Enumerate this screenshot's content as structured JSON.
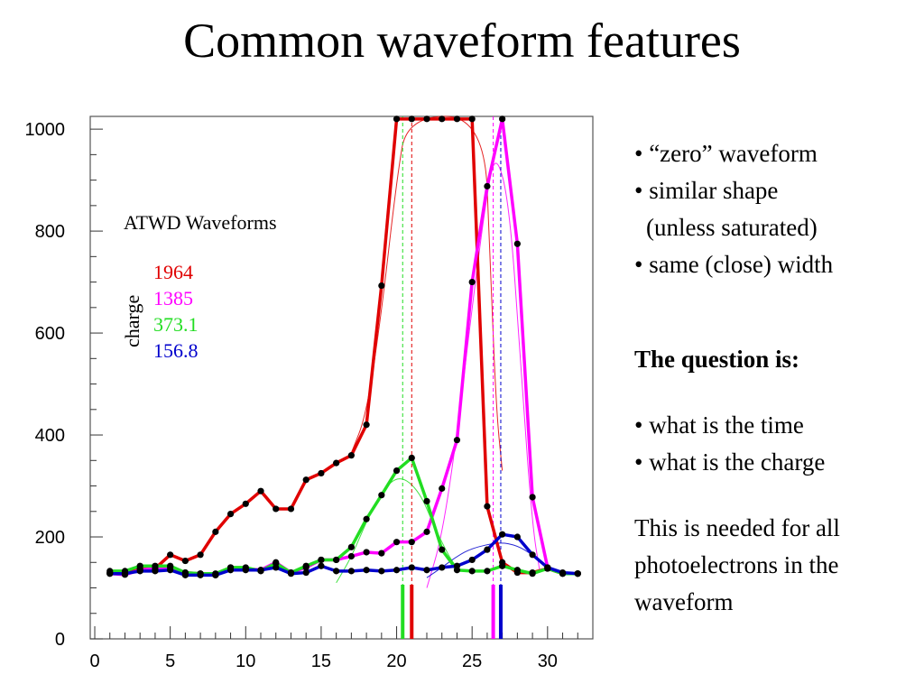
{
  "title": "Common waveform features",
  "chart_data": {
    "type": "line",
    "x_ticks": [
      0,
      5,
      10,
      15,
      20,
      25,
      30
    ],
    "y_ticks": [
      0,
      200,
      400,
      600,
      800,
      1000
    ],
    "xlim": [
      -0.3,
      33
    ],
    "ylim": [
      0,
      1025
    ],
    "grid": false,
    "legend_position": "top-left inside plot",
    "annotation": {
      "title": "ATWD Waveforms",
      "axis_word": "charge",
      "entries": [
        {
          "label": "1964",
          "color": "#e00000"
        },
        {
          "label": "1385",
          "color": "#ff00ff"
        },
        {
          "label": "373.1",
          "color": "#22dd22"
        },
        {
          "label": "156.8",
          "color": "#0000cc"
        }
      ]
    },
    "series": [
      {
        "color": "#e00000",
        "x": [
          1,
          2,
          3,
          4,
          5,
          6,
          7,
          8,
          9,
          10,
          11,
          12,
          13,
          14,
          15,
          16,
          17,
          18,
          19,
          20,
          21,
          22,
          23,
          24,
          25,
          26,
          27,
          28,
          29,
          30,
          31,
          32
        ],
        "y": [
          130,
          128,
          138,
          138,
          165,
          153,
          165,
          210,
          245,
          265,
          290,
          255,
          255,
          312,
          325,
          345,
          360,
          420,
          693,
          1020,
          1020,
          1020,
          1020,
          1020,
          1020,
          260,
          150,
          130,
          130,
          138,
          128,
          128
        ],
        "fit": [
          [
            17,
            365
          ],
          [
            18,
            440
          ],
          [
            19,
            640
          ],
          [
            20,
            900
          ],
          [
            20.7,
            1025
          ],
          [
            25.8,
            1025
          ],
          [
            26.2,
            740
          ],
          [
            26.6,
            450
          ],
          [
            27,
            330
          ]
        ],
        "time_marker": 21.0
      },
      {
        "color": "#ff00ff",
        "x": [
          1,
          2,
          3,
          4,
          5,
          6,
          7,
          8,
          9,
          10,
          11,
          12,
          13,
          14,
          15,
          16,
          17,
          18,
          19,
          20,
          21,
          22,
          23,
          24,
          25,
          26,
          27,
          28,
          29,
          30,
          31,
          32
        ],
        "y": [
          128,
          126,
          135,
          138,
          140,
          130,
          128,
          125,
          140,
          138,
          135,
          150,
          130,
          140,
          155,
          155,
          162,
          170,
          168,
          190,
          190,
          210,
          295,
          390,
          700,
          888,
          1020,
          775,
          278,
          140,
          128,
          128
        ],
        "fit": [
          [
            22,
            100
          ],
          [
            23,
            200
          ],
          [
            24,
            400
          ],
          [
            25,
            650
          ],
          [
            26,
            880
          ],
          [
            26.6,
            955
          ],
          [
            27.5,
            850
          ],
          [
            28.3,
            500
          ],
          [
            29,
            220
          ],
          [
            29.5,
            130
          ]
        ],
        "time_marker": 26.4
      },
      {
        "color": "#22dd22",
        "x": [
          1,
          2,
          3,
          4,
          5,
          6,
          7,
          8,
          9,
          10,
          11,
          12,
          13,
          14,
          15,
          16,
          17,
          18,
          19,
          20,
          21,
          22,
          23,
          24,
          25,
          26,
          27,
          28,
          29,
          30,
          31,
          32
        ],
        "y": [
          133,
          133,
          143,
          143,
          143,
          130,
          128,
          128,
          140,
          140,
          133,
          148,
          130,
          143,
          155,
          155,
          180,
          235,
          282,
          330,
          355,
          270,
          175,
          135,
          133,
          133,
          143,
          135,
          128,
          138,
          128,
          128
        ],
        "fit": [
          [
            16,
            110
          ],
          [
            17,
            160
          ],
          [
            18,
            230
          ],
          [
            19,
            290
          ],
          [
            20.2,
            322
          ],
          [
            21.5,
            290
          ],
          [
            22.5,
            220
          ],
          [
            23.5,
            160
          ],
          [
            24,
            140
          ]
        ],
        "time_marker": 20.4
      },
      {
        "color": "#0000cc",
        "x": [
          1,
          2,
          3,
          4,
          5,
          6,
          7,
          8,
          9,
          10,
          11,
          12,
          13,
          14,
          15,
          16,
          17,
          18,
          19,
          20,
          21,
          22,
          23,
          24,
          25,
          26,
          27,
          28,
          29,
          30,
          31,
          32
        ],
        "y": [
          128,
          128,
          133,
          133,
          135,
          125,
          125,
          125,
          135,
          135,
          135,
          140,
          128,
          130,
          143,
          133,
          133,
          135,
          133,
          135,
          140,
          135,
          140,
          143,
          155,
          175,
          205,
          200,
          165,
          140,
          130,
          128
        ],
        "fit": [
          [
            22,
            120
          ],
          [
            23,
            140
          ],
          [
            24,
            162
          ],
          [
            25,
            178
          ],
          [
            26.8,
            190
          ],
          [
            28,
            183
          ],
          [
            29,
            165
          ],
          [
            30,
            140
          ],
          [
            31,
            125
          ]
        ],
        "time_marker": 26.9
      }
    ]
  },
  "notes": {
    "bullet1": "• “zero” waveform",
    "bullet2": "• similar shape",
    "bullet2b": "(unless saturated)",
    "bullet3": "• same (close) width",
    "question": "The question is:",
    "q1": "• what is the time",
    "q2": "• what is the charge",
    "closing1": "This is needed for all",
    "closing2": "photoelectrons in the",
    "closing3": "waveform"
  }
}
